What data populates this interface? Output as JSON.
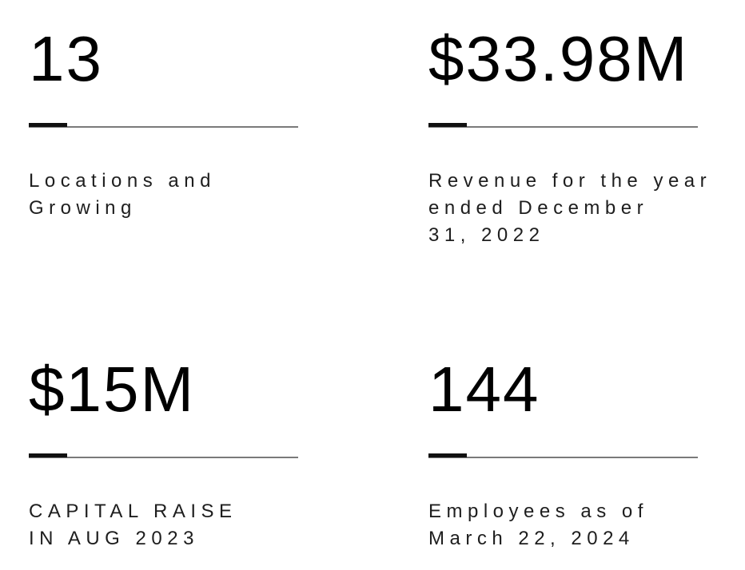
{
  "colors": {
    "number_color": "#000000",
    "description_color": "#1e1e1e",
    "divider_line_color": "#7a7a7a",
    "divider_accent_color": "#111111",
    "page_background": "#ffffff"
  },
  "stats": [
    {
      "value": "13",
      "description_lines": [
        "Locations and",
        "Growing"
      ]
    },
    {
      "value": "$33.98M",
      "description_lines": [
        "Revenue for the year",
        "ended December",
        "31, 2022"
      ]
    },
    {
      "value": "$15M",
      "description_lines": [
        "CAPITAL RAISE",
        "IN AUG 2023"
      ]
    },
    {
      "value": "144",
      "description_lines": [
        "Employees as of",
        "March 22, 2024"
      ]
    }
  ]
}
